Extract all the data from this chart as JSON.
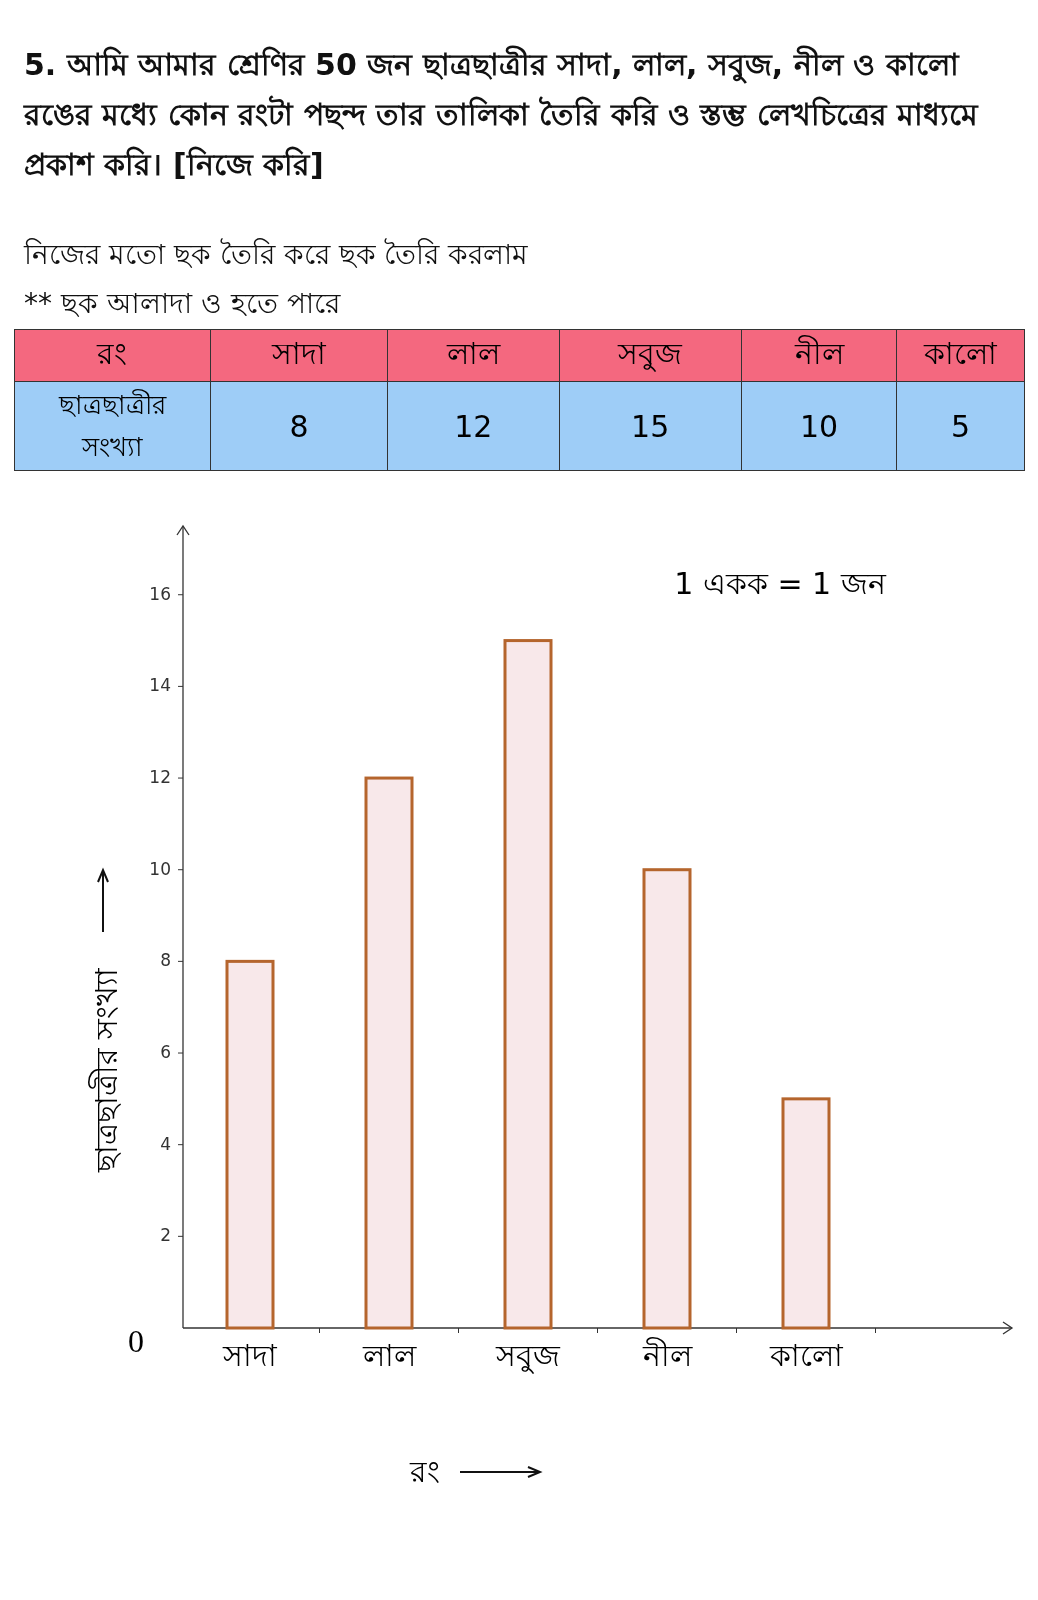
{
  "chart_data": {
    "type": "bar",
    "title": "5. আমি আমার শ্রেণির 50 জন ছাত্রছাত্রীর সাদা, লাল, সবুজ, নীল ও কালো রঙের মধ্যে কোন রংটা পছন্দ তার তালিকা তৈরি করি ও স্তম্ভ লেখচিত্রের মাধ্যমে প্রকাশ করি। [নিজে করি]",
    "subtitle": "নিজের মতো ছক তৈরি করে ছক তৈরি করলাম",
    "annotations": [
      "** ছক আলাদা ও হতে পারে",
      "1 একক = 1 জন",
      "0",
      "8",
      "12",
      "15",
      "10",
      "5"
    ],
    "xlabel": "রং",
    "ylabel": "ছাত্রছাত্রীর সংখ্যা",
    "categories": [
      "সাদা",
      "লাল",
      "সবুজ",
      "নীল",
      "কালো"
    ],
    "values": [
      8,
      12,
      15,
      10,
      5
    ],
    "color": "#f8e8ea",
    "ylim": [
      0,
      17.5
    ],
    "yticks": [
      2,
      4,
      6,
      8,
      10,
      12,
      14,
      16
    ]
  }
}
